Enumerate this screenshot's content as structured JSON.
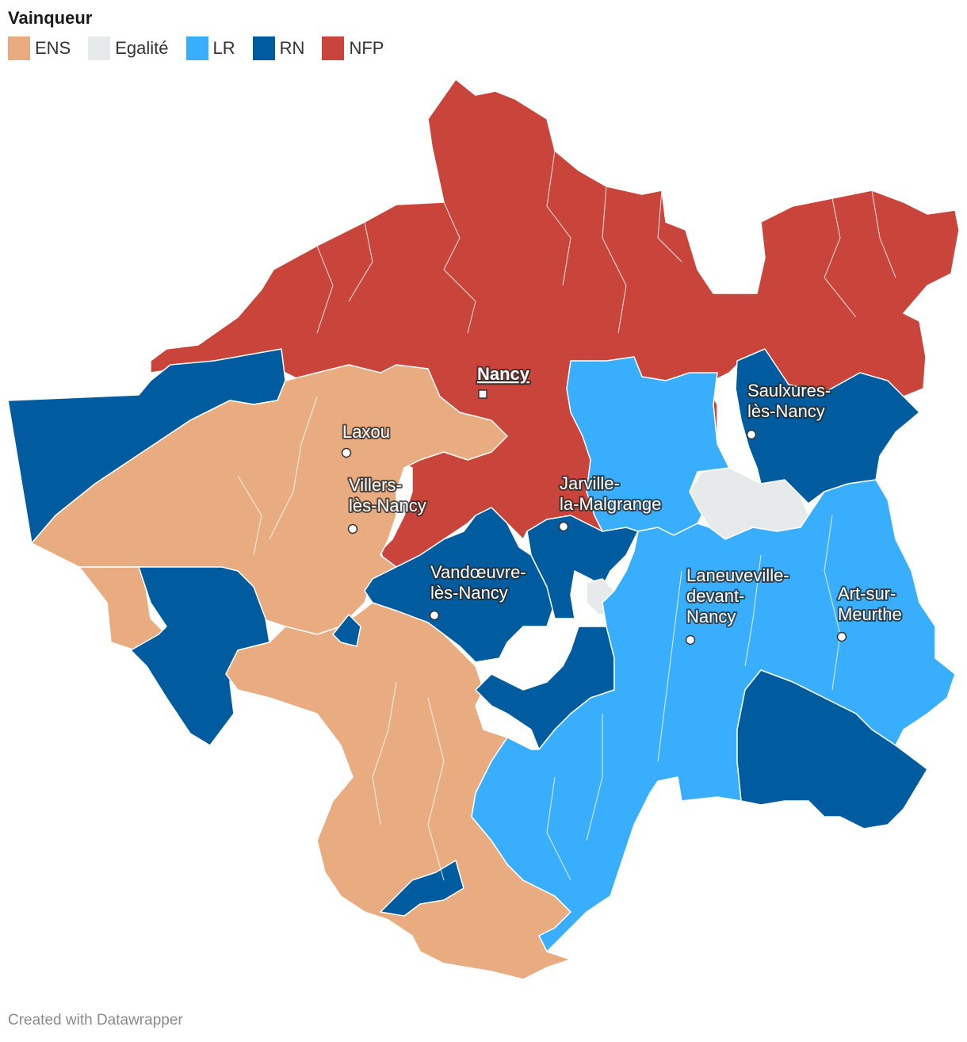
{
  "legend": {
    "title": "Vainqueur",
    "items": [
      {
        "label": "ENS",
        "color": "#e8ac80"
      },
      {
        "label": "Egalité",
        "color": "#e6eaea"
      },
      {
        "label": "LR",
        "color": "#38aefc"
      },
      {
        "label": "RN",
        "color": "#005c9e"
      },
      {
        "label": "NFP",
        "color": "#c9443a"
      }
    ]
  },
  "cities": [
    {
      "name_lines": [
        "Nancy"
      ],
      "capital": true
    },
    {
      "name_lines": [
        "Laxou"
      ],
      "capital": false
    },
    {
      "name_lines": [
        "Villers-",
        "lès-Nancy"
      ],
      "capital": false
    },
    {
      "name_lines": [
        "Jarville-",
        "la-Malgrange"
      ],
      "capital": false
    },
    {
      "name_lines": [
        "Vandœuvre-",
        "lès-Nancy"
      ],
      "capital": false
    },
    {
      "name_lines": [
        "Saulxures-",
        "lès-Nancy"
      ],
      "capital": false
    },
    {
      "name_lines": [
        "Laneuveville-",
        "devant-",
        "Nancy"
      ],
      "capital": false
    },
    {
      "name_lines": [
        "Art-sur-",
        "Meurthe"
      ],
      "capital": false
    }
  ],
  "footer": "Created with Datawrapper"
}
